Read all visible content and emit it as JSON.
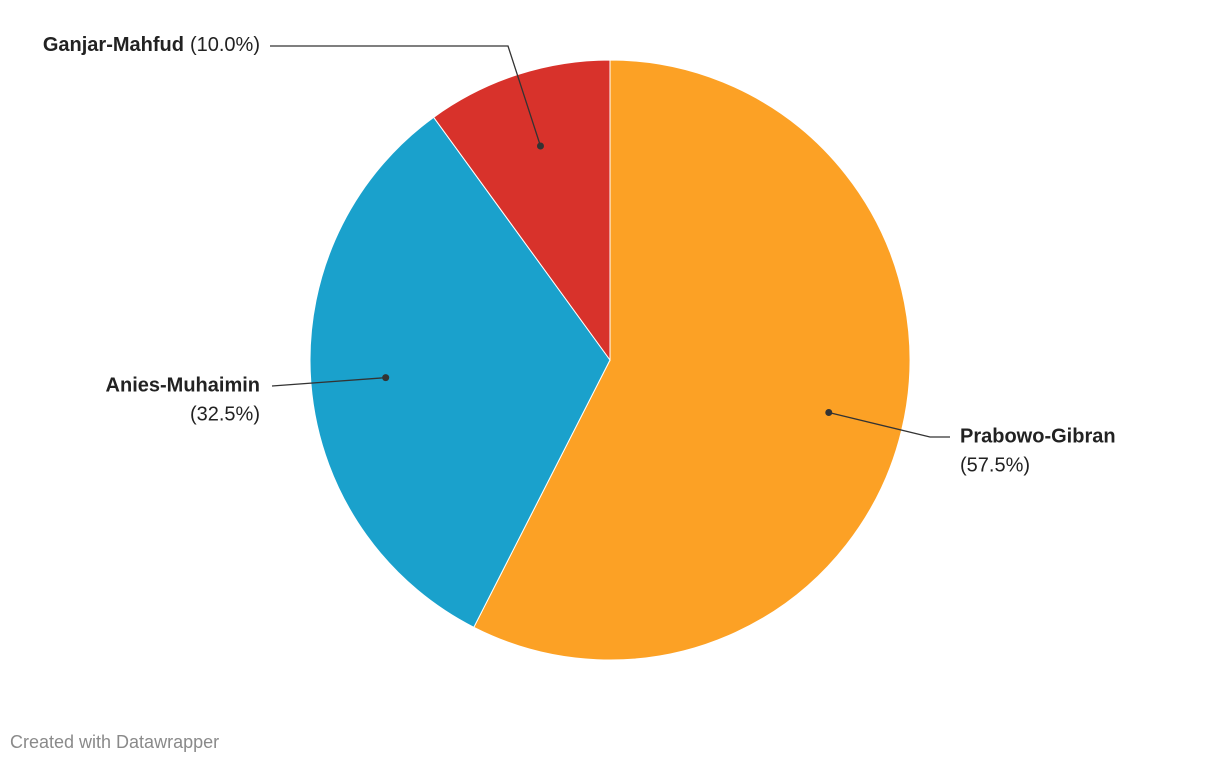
{
  "chart_data": {
    "type": "pie",
    "categories": [
      "Prabowo-Gibran",
      "Anies-Muhaimin",
      "Ganjar-Mahfud"
    ],
    "values": [
      57.5,
      32.5,
      10.0
    ],
    "value_labels": [
      "(57.5%)",
      "(32.5%)",
      "(10.0%)"
    ],
    "colors": [
      "#fca125",
      "#1aa1cc",
      "#d8322b"
    ],
    "credit": "Created with Datawrapper"
  }
}
